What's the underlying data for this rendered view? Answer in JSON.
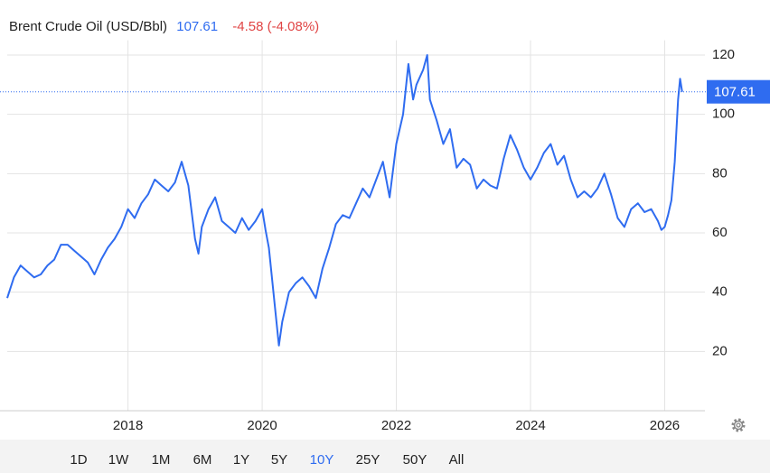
{
  "chart_data": {
    "type": "line",
    "title": "Brent Crude Oil (USD/Bbl)",
    "price": 107.61,
    "change": "-4.58 (-4.08%)",
    "x": [
      2016.2,
      2016.3,
      2016.4,
      2016.5,
      2016.6,
      2016.7,
      2016.8,
      2016.9,
      2017.0,
      2017.1,
      2017.2,
      2017.3,
      2017.4,
      2017.5,
      2017.6,
      2017.7,
      2017.8,
      2017.9,
      2018.0,
      2018.1,
      2018.2,
      2018.3,
      2018.4,
      2018.5,
      2018.6,
      2018.7,
      2018.8,
      2018.9,
      2019.0,
      2019.05,
      2019.1,
      2019.2,
      2019.3,
      2019.4,
      2019.5,
      2019.6,
      2019.7,
      2019.8,
      2019.9,
      2020.0,
      2020.05,
      2020.1,
      2020.2,
      2020.25,
      2020.3,
      2020.4,
      2020.5,
      2020.6,
      2020.7,
      2020.8,
      2020.9,
      2021.0,
      2021.1,
      2021.2,
      2021.3,
      2021.4,
      2021.5,
      2021.6,
      2021.7,
      2021.8,
      2021.9,
      2022.0,
      2022.1,
      2022.18,
      2022.25,
      2022.3,
      2022.4,
      2022.46,
      2022.5,
      2022.6,
      2022.7,
      2022.8,
      2022.9,
      2023.0,
      2023.1,
      2023.2,
      2023.3,
      2023.4,
      2023.5,
      2023.6,
      2023.7,
      2023.8,
      2023.9,
      2024.0,
      2024.1,
      2024.2,
      2024.3,
      2024.4,
      2024.5,
      2024.6,
      2024.7,
      2024.8,
      2024.9,
      2025.0,
      2025.1,
      2025.2,
      2025.3,
      2025.4,
      2025.5,
      2025.6,
      2025.7,
      2025.8,
      2025.9,
      2025.95,
      2026.0,
      2026.05,
      2026.1,
      2026.15,
      2026.2,
      2026.23,
      2026.26
    ],
    "series": [
      {
        "name": "Brent",
        "color": "#2f6cf0",
        "values": [
          38,
          45,
          49,
          47,
          45,
          46,
          49,
          51,
          56,
          56,
          54,
          52,
          50,
          46,
          51,
          55,
          58,
          62,
          68,
          65,
          70,
          73,
          78,
          76,
          74,
          77,
          84,
          76,
          58,
          53,
          62,
          68,
          72,
          64,
          62,
          60,
          65,
          61,
          64,
          68,
          61,
          55,
          33,
          22,
          30,
          40,
          43,
          45,
          42,
          38,
          48,
          55,
          63,
          66,
          65,
          70,
          75,
          72,
          78,
          84,
          72,
          90,
          100,
          117,
          105,
          110,
          115,
          120,
          105,
          98,
          90,
          95,
          82,
          85,
          83,
          75,
          78,
          76,
          75,
          85,
          93,
          88,
          82,
          78,
          82,
          87,
          90,
          83,
          86,
          78,
          72,
          74,
          72,
          75,
          80,
          73,
          65,
          62,
          68,
          70,
          67,
          68,
          64,
          61,
          62,
          66,
          71,
          84,
          105,
          112,
          107.61
        ]
      }
    ],
    "xlim": [
      2016.2,
      2026.6
    ],
    "xticks": [
      2018,
      2020,
      2022,
      2024,
      2026
    ],
    "ylim": [
      0,
      125
    ],
    "yticks": [
      20,
      40,
      60,
      80,
      100,
      120
    ],
    "grid": true
  },
  "range_buttons": [
    "1D",
    "1W",
    "1M",
    "6M",
    "1Y",
    "5Y",
    "10Y",
    "25Y",
    "50Y",
    "All"
  ],
  "selected_range": "10Y"
}
